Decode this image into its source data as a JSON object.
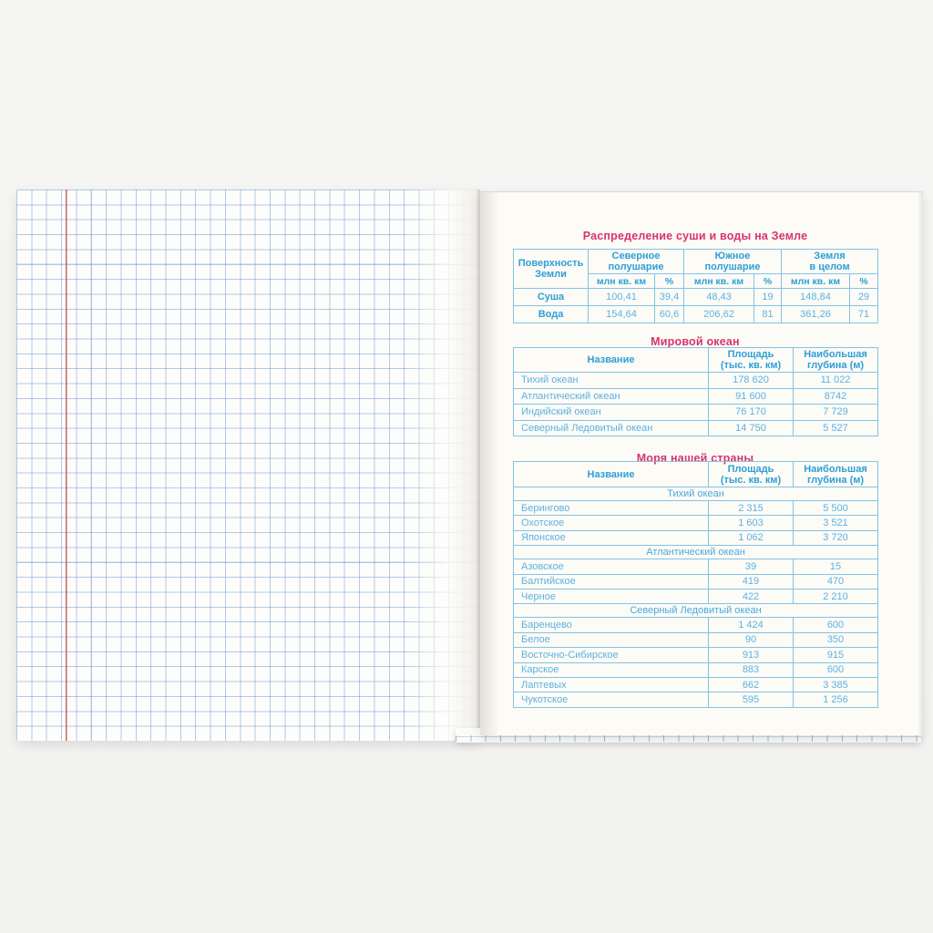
{
  "colors": {
    "title_pink": "#d8336e",
    "header_blue": "#2e9fd8",
    "cell_blue": "#5db2e2",
    "table_border_blue": "#82c3e8",
    "grid_line_blue": "#9cc0e2",
    "margin_line_red": "#c4544b"
  },
  "left_page": {
    "type": "blank squared grid paper with red margin line"
  },
  "table_land_water": {
    "title": "Распределение суши и воды на Земле",
    "header": {
      "surface": "Поверхность\nЗемли",
      "north": "Северное\nполушарие",
      "south": "Южное\nполушарие",
      "whole": "Земля\nв целом",
      "unit_area": "млн кв. км",
      "unit_pct": "%"
    },
    "rows": [
      {
        "label": "Суша",
        "cells": [
          "100,41",
          "39,4",
          "48,43",
          "19",
          "148,84",
          "29"
        ]
      },
      {
        "label": "Вода",
        "cells": [
          "154,64",
          "60,6",
          "206,62",
          "81",
          "361,26",
          "71"
        ]
      }
    ]
  },
  "table_world_ocean": {
    "title": "Мировой океан",
    "header": {
      "name": "Название",
      "area": "Площадь\n(тыс. кв. км)",
      "depth": "Наибольшая\nглубина (м)"
    },
    "rows": [
      [
        "Тихий океан",
        "178 620",
        "11 022"
      ],
      [
        "Атлантический океан",
        "91 600",
        "8742"
      ],
      [
        "Индийский океан",
        "76 170",
        "7 729"
      ],
      [
        "Северный Ледовитый океан",
        "14 750",
        "5 527"
      ]
    ]
  },
  "table_seas": {
    "title": "Моря нашей страны",
    "header": {
      "name": "Название",
      "area": "Площадь\n(тыс. кв. км)",
      "depth": "Наибольшая\nглубина (м)"
    },
    "sections": [
      {
        "ocean": "Тихий океан",
        "rows": [
          [
            "Берингово",
            "2 315",
            "5 500"
          ],
          [
            "Охотское",
            "1 603",
            "3 521"
          ],
          [
            "Японское",
            "1 062",
            "3 720"
          ]
        ]
      },
      {
        "ocean": "Атлантический океан",
        "rows": [
          [
            "Азовское",
            "39",
            "15"
          ],
          [
            "Балтийское",
            "419",
            "470"
          ],
          [
            "Черное",
            "422",
            "2 210"
          ]
        ]
      },
      {
        "ocean": "Северный Ледовитый океан",
        "rows": [
          [
            "Баренцево",
            "1 424",
            "600"
          ],
          [
            "Белое",
            "90",
            "350"
          ],
          [
            "Восточно-Сибирское",
            "913",
            "915"
          ],
          [
            "Карское",
            "883",
            "600"
          ],
          [
            "Лаптевых",
            "662",
            "3 385"
          ],
          [
            "Чукотское",
            "595",
            "1 256"
          ]
        ]
      }
    ]
  }
}
